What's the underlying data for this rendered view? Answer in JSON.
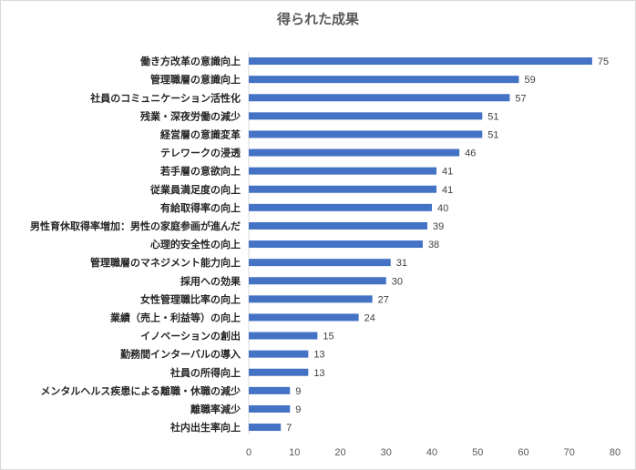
{
  "chart_data": {
    "type": "bar",
    "orientation": "horizontal",
    "title": "得られた成果",
    "xlabel": "",
    "ylabel": "",
    "xlim": [
      0,
      80
    ],
    "ticks": [
      0,
      10,
      20,
      30,
      40,
      50,
      60,
      70,
      80
    ],
    "grid": false,
    "legend": "none",
    "bar_color": "#4472c4",
    "categories": [
      "働き方改革の意識向上",
      "管理職層の意識向上",
      "社員のコミュニケーション活性化",
      "残業・深夜労働の減少",
      "経営層の意識変革",
      "テレワークの浸透",
      "若手層の意欲向上",
      "従業員満足度の向上",
      "有給取得率の向上",
      "男性育休取得率増加：男性の家庭参画が進んだ",
      "心理的安全性の向上",
      "管理職層のマネジメント能力向上",
      "採用への効果",
      "女性管理職比率の向上",
      "業績（売上・利益等）の向上",
      "イノベーションの創出",
      "勤務間インターバルの導入",
      "社員の所得向上",
      "メンタルヘルス疾患による離職・休職の減少",
      "離職率減少",
      "社内出生率向上"
    ],
    "values": [
      75,
      59,
      57,
      51,
      51,
      46,
      41,
      41,
      40,
      39,
      38,
      31,
      30,
      27,
      24,
      15,
      13,
      13,
      9,
      9,
      7
    ]
  }
}
